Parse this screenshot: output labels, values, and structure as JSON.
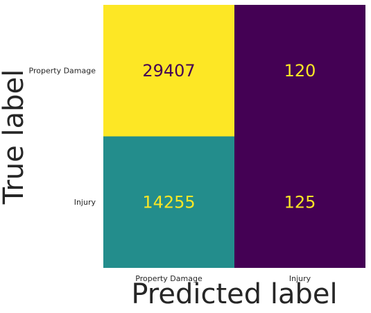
{
  "chart_data": {
    "type": "heatmap",
    "x_categories": [
      "Property Damage",
      "Injury"
    ],
    "y_categories": [
      "Property Damage",
      "Injury"
    ],
    "values": [
      [
        29407,
        120
      ],
      [
        14255,
        125
      ]
    ],
    "xlabel": "Predicted label",
    "ylabel": "True label",
    "colormap": "viridis",
    "grid": false,
    "colorbar": false
  }
}
